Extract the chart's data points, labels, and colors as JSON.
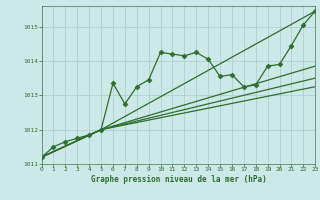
{
  "title": "Graphe pression niveau de la mer (hPa)",
  "bg_color": "#cce8e8",
  "grid_color": "#aacccc",
  "line_color": "#2d6e2d",
  "xlim": [
    0,
    23
  ],
  "ylim": [
    1011.0,
    1015.6
  ],
  "yticks": [
    1011,
    1012,
    1013,
    1014,
    1015
  ],
  "xticks": [
    0,
    1,
    2,
    3,
    4,
    5,
    6,
    7,
    8,
    9,
    10,
    11,
    12,
    13,
    14,
    15,
    16,
    17,
    18,
    19,
    20,
    21,
    22,
    23
  ],
  "series": [
    {
      "x": [
        0,
        1,
        2,
        3,
        4,
        5,
        6,
        7,
        8,
        9,
        10,
        11,
        12,
        13,
        14,
        15,
        16,
        17,
        18,
        19,
        20,
        21,
        22,
        23
      ],
      "y": [
        1011.2,
        1011.5,
        1011.65,
        1011.75,
        1011.85,
        1012.0,
        1013.35,
        1012.75,
        1013.25,
        1013.45,
        1014.25,
        1014.2,
        1014.15,
        1014.25,
        1014.05,
        1013.55,
        1013.6,
        1013.25,
        1013.3,
        1013.85,
        1013.9,
        1014.45,
        1015.05,
        1015.45
      ],
      "marker": "D",
      "markersize": 2.5,
      "lw": 0.9
    },
    {
      "x": [
        0,
        5,
        23
      ],
      "y": [
        1011.2,
        1012.0,
        1015.45
      ],
      "marker": null,
      "markersize": 0,
      "lw": 0.9
    },
    {
      "x": [
        0,
        5,
        23
      ],
      "y": [
        1011.2,
        1012.0,
        1013.85
      ],
      "marker": null,
      "markersize": 0,
      "lw": 0.9
    },
    {
      "x": [
        0,
        5,
        23
      ],
      "y": [
        1011.2,
        1012.0,
        1013.5
      ],
      "marker": null,
      "markersize": 0,
      "lw": 0.9
    },
    {
      "x": [
        0,
        5,
        23
      ],
      "y": [
        1011.2,
        1012.0,
        1013.25
      ],
      "marker": null,
      "markersize": 0,
      "lw": 0.9
    }
  ]
}
